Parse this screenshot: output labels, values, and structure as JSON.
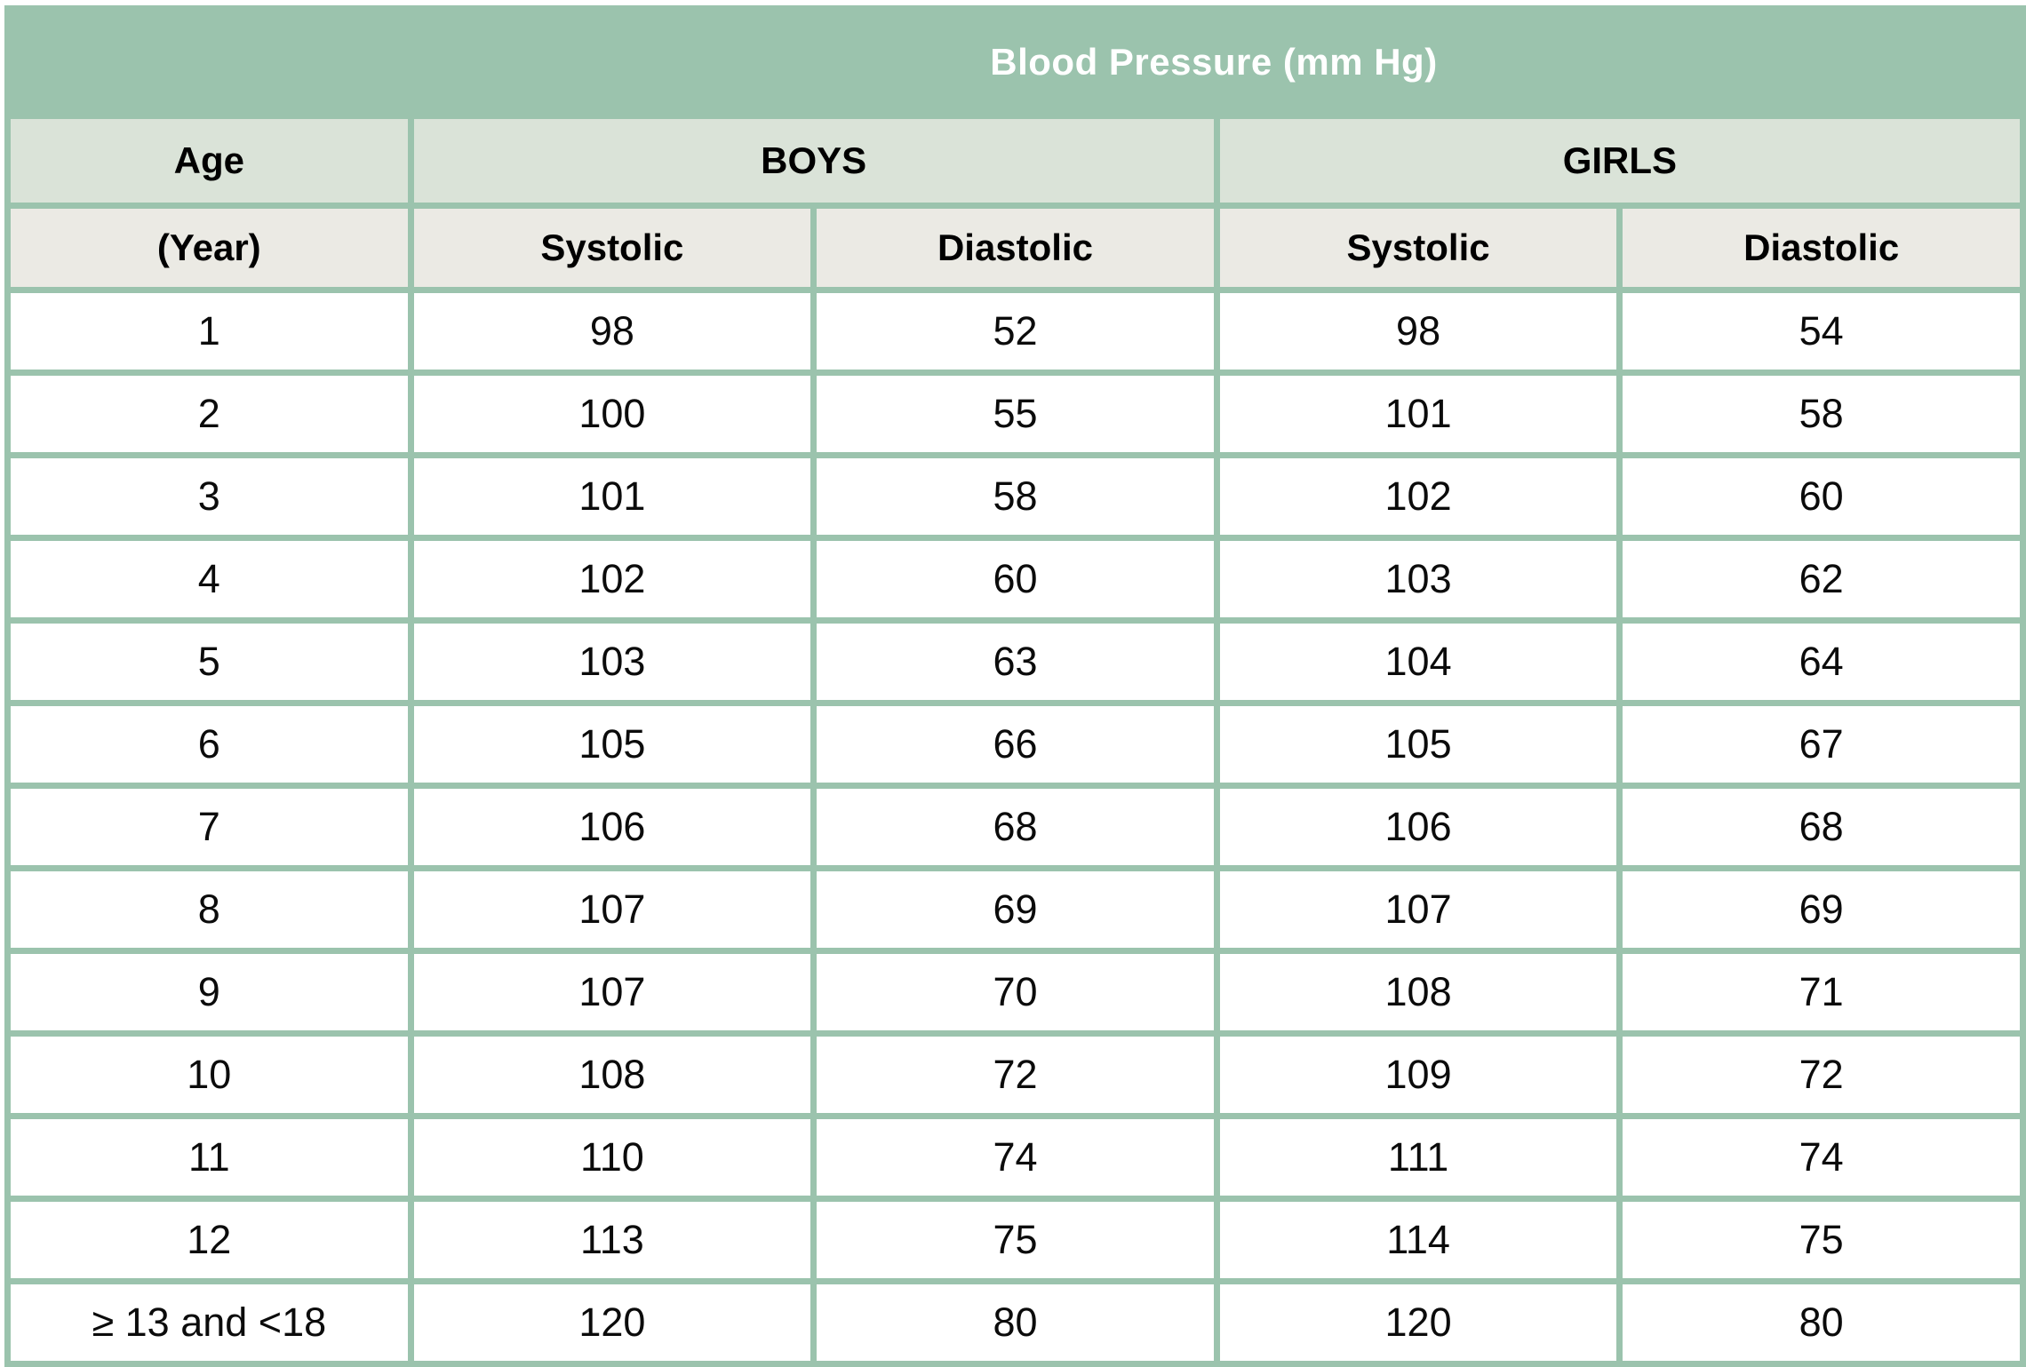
{
  "title": "Blood Pressure (mm Hg)",
  "header": {
    "age_label": "Age",
    "age_sub_label": "(Year)",
    "boys_label": "BOYS",
    "girls_label": "GIRLS",
    "systolic_label": "Systolic",
    "diastolic_label": "Diastolic"
  },
  "colors": {
    "title_background": "#9bc3ad",
    "border_green": "#9bc3ad",
    "group_row_background": "#dae3d8",
    "sub_row_background": "#ebeae4",
    "title_text": "#ffffff",
    "body_text": "#0b0b0b"
  },
  "chart_data": {
    "type": "table",
    "title": "Blood Pressure (mm Hg)",
    "columns": [
      "Age (Year)",
      "BOYS Systolic",
      "BOYS Diastolic",
      "GIRLS Systolic",
      "GIRLS Diastolic"
    ],
    "rows": [
      [
        "1",
        "98",
        "52",
        "98",
        "54"
      ],
      [
        "2",
        "100",
        "55",
        "101",
        "58"
      ],
      [
        "3",
        "101",
        "58",
        "102",
        "60"
      ],
      [
        "4",
        "102",
        "60",
        "103",
        "62"
      ],
      [
        "5",
        "103",
        "63",
        "104",
        "64"
      ],
      [
        "6",
        "105",
        "66",
        "105",
        "67"
      ],
      [
        "7",
        "106",
        "68",
        "106",
        "68"
      ],
      [
        "8",
        "107",
        "69",
        "107",
        "69"
      ],
      [
        "9",
        "107",
        "70",
        "108",
        "71"
      ],
      [
        "10",
        "108",
        "72",
        "109",
        "72"
      ],
      [
        "11",
        "110",
        "74",
        "111",
        "74"
      ],
      [
        "12",
        "113",
        "75",
        "114",
        "75"
      ],
      [
        "≥ 13 and <18",
        "120",
        "80",
        "120",
        "80"
      ]
    ]
  }
}
